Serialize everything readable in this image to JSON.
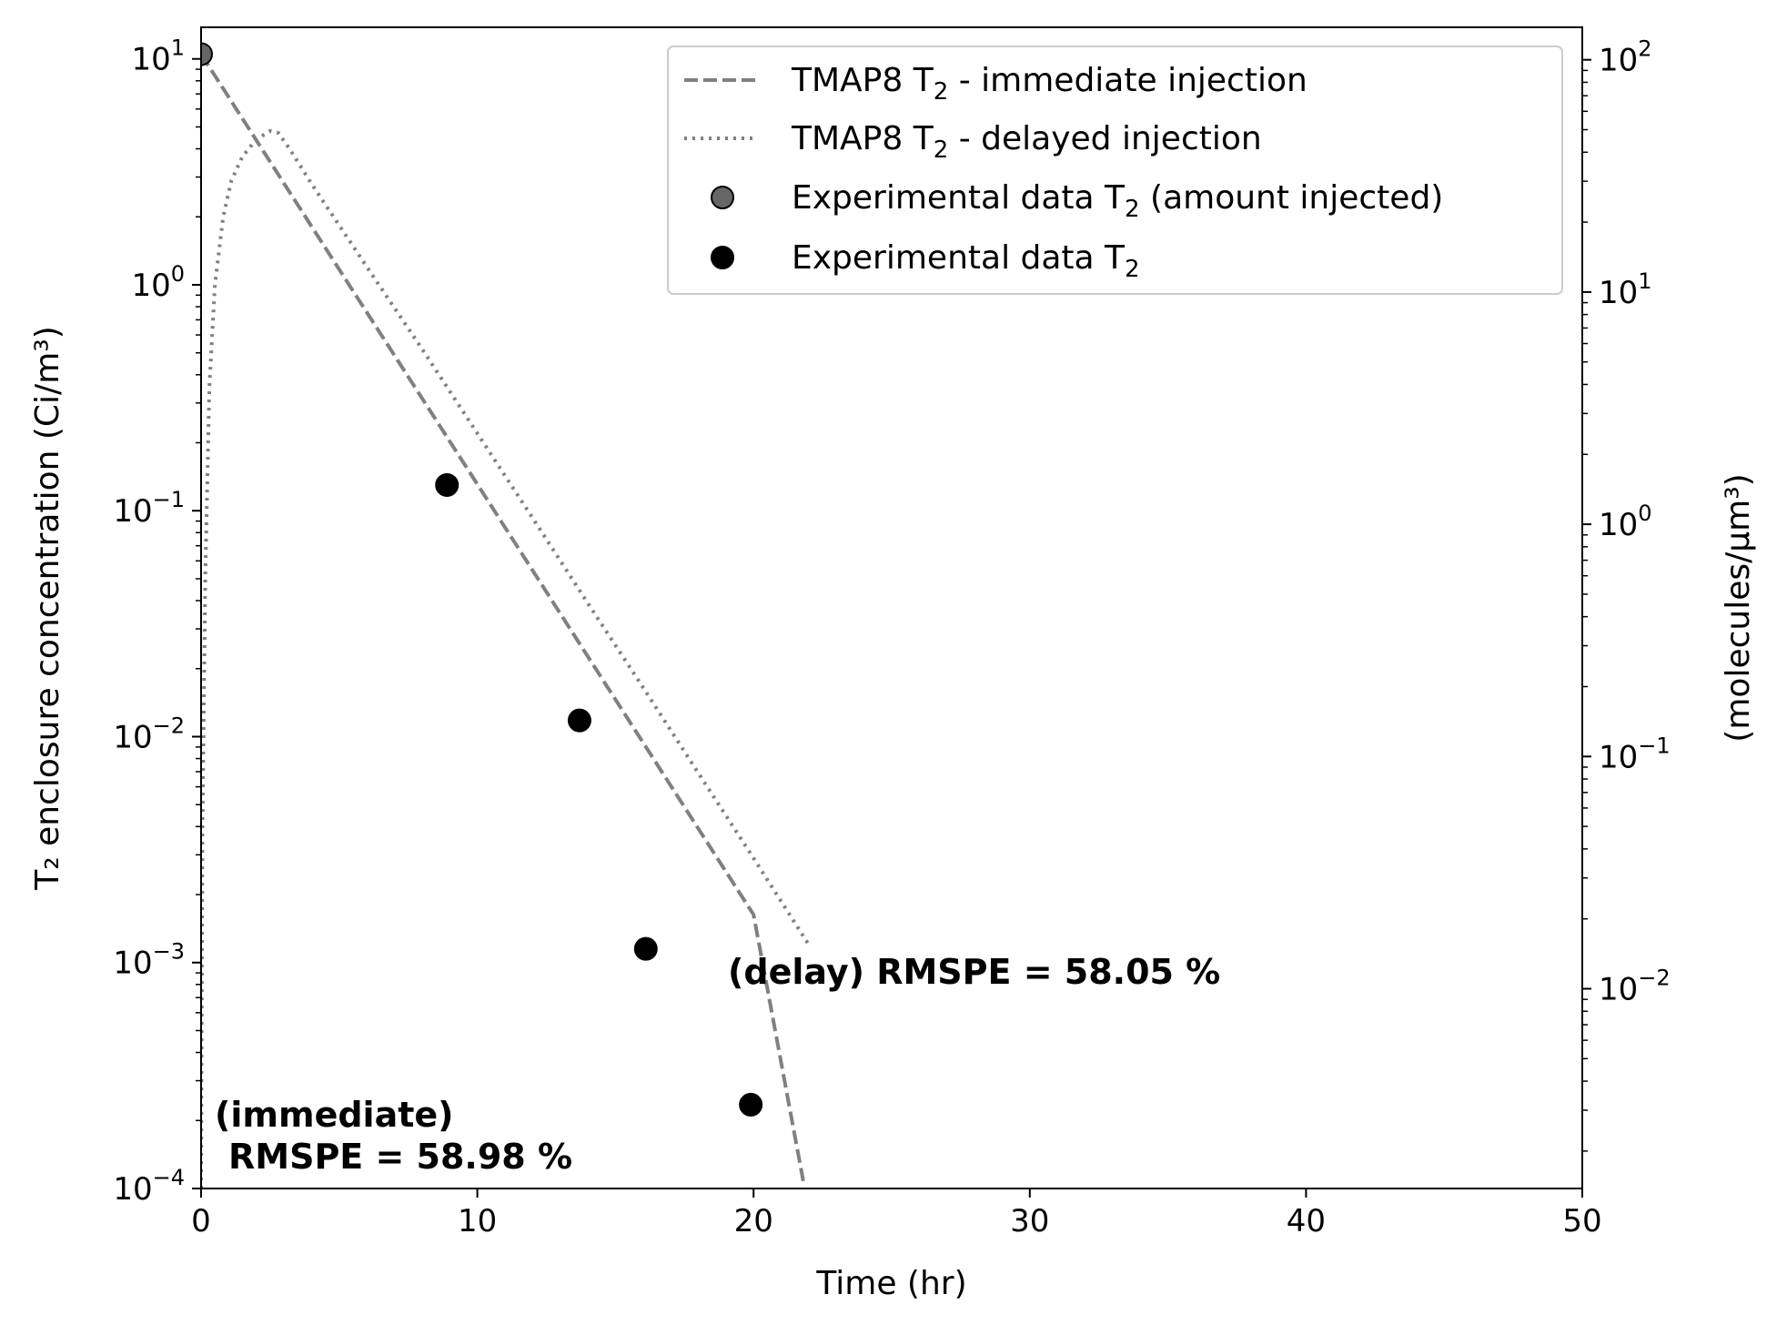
{
  "chart_data": {
    "type": "scatter",
    "title": "",
    "xlabel": "Time (hr)",
    "ylabel": "T₂ enclosure concentration (Ci/m³)",
    "ylabel_right": "(molecules/μm³)",
    "xlim": [
      0,
      50
    ],
    "ylim": [
      0.0001,
      13.8
    ],
    "ylim_right": [
      0.00138,
      138
    ],
    "yscale": "log",
    "grid": false,
    "legend_position": "top-right",
    "x_ticks": [
      0,
      10,
      20,
      30,
      40,
      50
    ],
    "x_tick_labels": [
      "0",
      "10",
      "20",
      "30",
      "40",
      "50"
    ],
    "y_ticks": [
      {
        "value": 10,
        "base": "10",
        "exp": "1"
      },
      {
        "value": 1,
        "base": "10",
        "exp": "0"
      },
      {
        "value": 0.1,
        "base": "10",
        "exp": "−1"
      },
      {
        "value": 0.01,
        "base": "10",
        "exp": "−2"
      },
      {
        "value": 0.001,
        "base": "10",
        "exp": "−3"
      },
      {
        "value": 0.0001,
        "base": "10",
        "exp": "−4"
      }
    ],
    "y_right_ticks": [
      {
        "value": 100,
        "base": "10",
        "exp": "2"
      },
      {
        "value": 10,
        "base": "10",
        "exp": "1"
      },
      {
        "value": 1,
        "base": "10",
        "exp": "0"
      },
      {
        "value": 0.1,
        "base": "10",
        "exp": "−1"
      },
      {
        "value": 0.01,
        "base": "10",
        "exp": "−2"
      }
    ],
    "series": [
      {
        "name": "TMAP8 T₂ - immediate injection",
        "kind": "line",
        "style": "dashed",
        "color": "#808080",
        "x": [
          0,
          5,
          10,
          15,
          20,
          21.8
        ],
        "y": [
          10.5,
          1.17,
          0.131,
          0.0146,
          0.00163,
          0.000108
        ]
      },
      {
        "name": "TMAP8 T₂ - delayed injection",
        "kind": "line",
        "style": "dotted",
        "color": "#808080",
        "x": [
          0,
          0.05,
          0.15,
          0.3,
          0.5,
          0.8,
          1.1,
          1.5,
          2.0,
          2.5,
          2.8,
          3.2,
          4,
          6,
          8,
          10,
          12,
          14,
          16,
          18,
          20,
          22
        ],
        "y": [
          0.0001,
          0.004,
          0.05,
          0.35,
          1.0,
          2.0,
          2.9,
          3.7,
          4.4,
          4.8,
          4.7,
          4.0,
          2.8,
          1.2,
          0.52,
          0.22,
          0.093,
          0.039,
          0.0165,
          0.0069,
          0.0029,
          0.0012
        ]
      },
      {
        "name": "Experimental data T₂ (amount injected)",
        "kind": "scatter",
        "color": "#666666",
        "x": [
          0
        ],
        "y": [
          10.5
        ]
      },
      {
        "name": "Experimental data T₂",
        "kind": "scatter",
        "color": "#000000",
        "x": [
          8.9,
          13.7,
          16.1,
          19.9
        ],
        "y": [
          0.13,
          0.0118,
          0.00115,
          0.000235
        ]
      }
    ],
    "legend": [
      {
        "name_main": "TMAP8 T",
        "name_sub": "2",
        "name_rest": " - immediate injection",
        "marker": "dashed-line"
      },
      {
        "name_main": "TMAP8 T",
        "name_sub": "2",
        "name_rest": " - delayed injection",
        "marker": "dotted-line"
      },
      {
        "name_main": "Experimental data T",
        "name_sub": "2",
        "name_rest": " (amount injected)",
        "marker": "grey-dot"
      },
      {
        "name_main": "Experimental data T",
        "name_sub": "2",
        "name_rest": "",
        "marker": "black-dot"
      }
    ],
    "annotations": [
      {
        "line1": "(delay) RMSPE = 58.05 %",
        "line2": ""
      },
      {
        "line1": "(immediate)",
        "line2": "RMSPE = 58.98 %"
      }
    ]
  }
}
